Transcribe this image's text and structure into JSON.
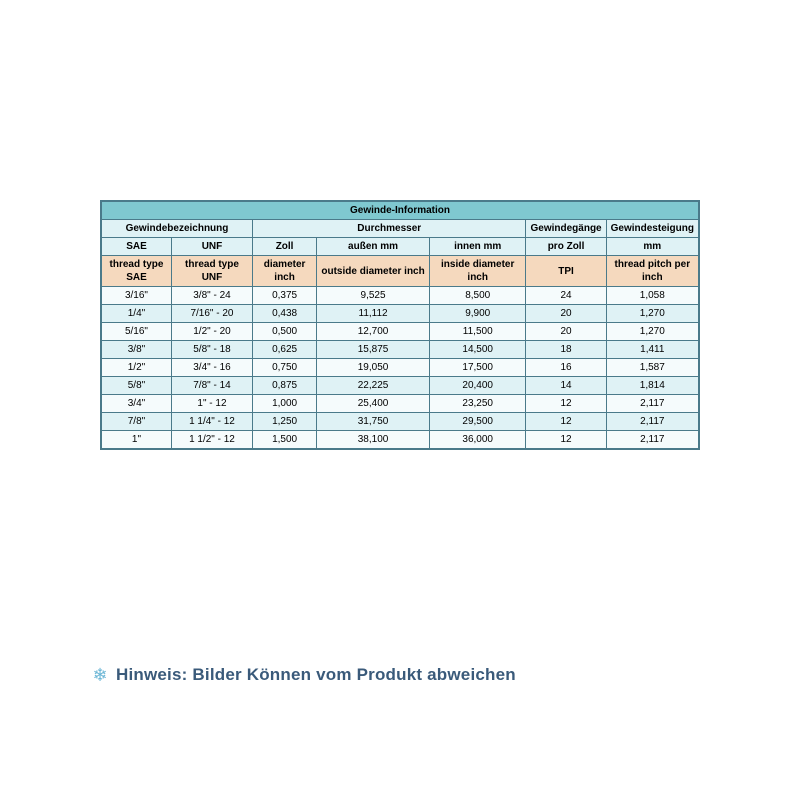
{
  "table": {
    "title": "Gewinde-Information",
    "group_headers": [
      "Gewindebezeichnung",
      "Durchmesser",
      "Gewindegänge",
      "Gewindesteigung"
    ],
    "group_spans": [
      2,
      3,
      1,
      1
    ],
    "sub_de": [
      "SAE",
      "UNF",
      "Zoll",
      "außen mm",
      "innen mm",
      "pro Zoll",
      "mm"
    ],
    "sub_en": [
      "thread type SAE",
      "thread type UNF",
      "diameter inch",
      "outside diameter inch",
      "inside diameter inch",
      "TPI",
      "thread pitch per inch"
    ],
    "col_widths": [
      "12%",
      "14%",
      "11%",
      "20%",
      "17%",
      "12%",
      "14%"
    ],
    "rows": [
      [
        "3/16\"",
        "3/8\" - 24",
        "0,375",
        "9,525",
        "8,500",
        "24",
        "1,058"
      ],
      [
        "1/4\"",
        "7/16\" - 20",
        "0,438",
        "11,112",
        "9,900",
        "20",
        "1,270"
      ],
      [
        "5/16\"",
        "1/2\" - 20",
        "0,500",
        "12,700",
        "11,500",
        "20",
        "1,270"
      ],
      [
        "3/8\"",
        "5/8\" - 18",
        "0,625",
        "15,875",
        "14,500",
        "18",
        "1,411"
      ],
      [
        "1/2\"",
        "3/4\" - 16",
        "0,750",
        "19,050",
        "17,500",
        "16",
        "1,587"
      ],
      [
        "5/8\"",
        "7/8\" - 14",
        "0,875",
        "22,225",
        "20,400",
        "14",
        "1,814"
      ],
      [
        "3/4\"",
        "1\" - 12",
        "1,000",
        "25,400",
        "23,250",
        "12",
        "2,117"
      ],
      [
        "7/8\"",
        "1 1/4\" - 12",
        "1,250",
        "31,750",
        "29,500",
        "12",
        "2,117"
      ],
      [
        "1\"",
        "1 1/2\" - 12",
        "1,500",
        "38,100",
        "36,000",
        "12",
        "2,117"
      ]
    ],
    "colors": {
      "border": "#4a7a8a",
      "title_bg": "#7fc8d0",
      "header_bg": "#dff2f5",
      "eng_bg": "#f5d9be",
      "row_even": "#f5fbfc",
      "row_odd": "#dff2f5"
    },
    "font_size": 10
  },
  "notice": {
    "icon": "❄",
    "text": "Hinweis: Bilder Können vom Produkt abweichen",
    "text_color": "#3a5a7a",
    "icon_color": "#6db7d6",
    "font_size": 17
  }
}
